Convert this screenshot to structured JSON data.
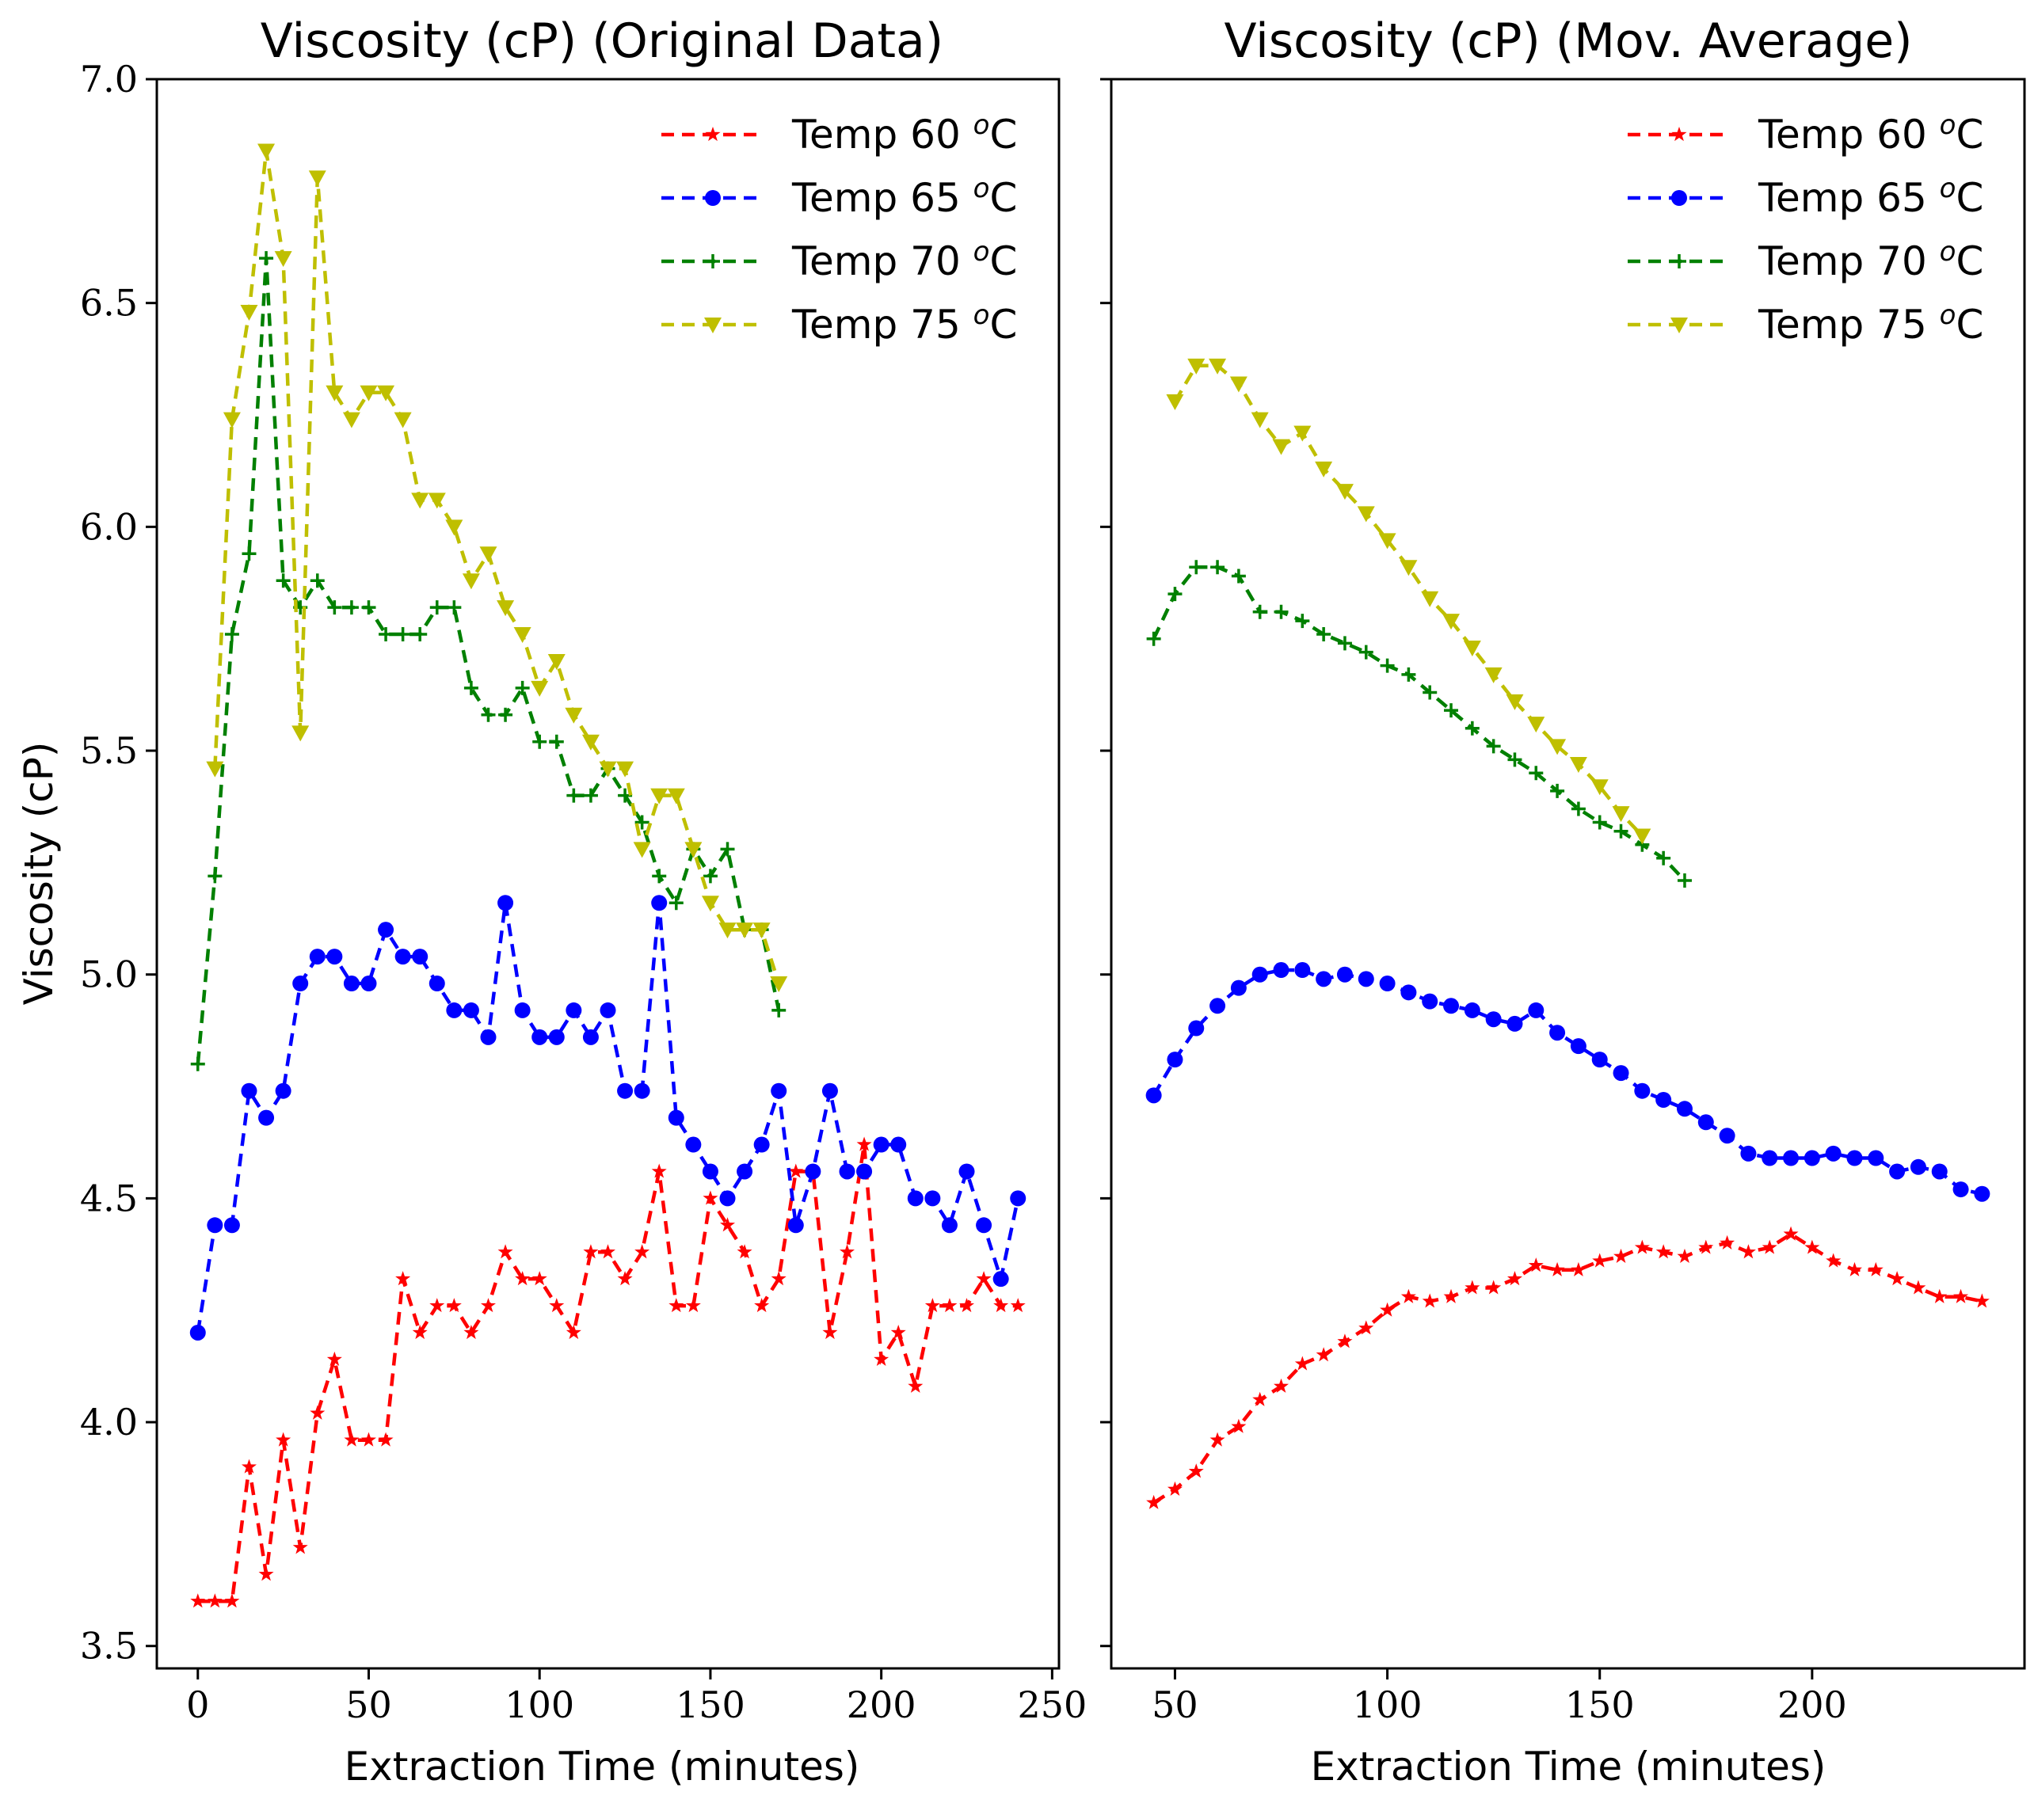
{
  "chart_data": [
    {
      "type": "line",
      "title": "Viscosity (cP) (Original Data)",
      "xlabel": "Extraction Time (minutes)",
      "ylabel": "Viscosity (cP)",
      "xlim": [
        -12,
        252
      ],
      "ylim": [
        3.45,
        7.0
      ],
      "xticks": [
        0,
        50,
        100,
        150,
        200,
        250
      ],
      "xtick_labels": [
        "0",
        "50",
        "100",
        "150",
        "200",
        "250"
      ],
      "yticks": [
        3.5,
        4.0,
        4.5,
        5.0,
        5.5,
        6.0,
        6.5,
        7.0
      ],
      "ytick_labels": [
        "3.5",
        "4.0",
        "4.5",
        "5.0",
        "5.5",
        "6.0",
        "6.5",
        "7.0"
      ],
      "legend_position": "top-right",
      "series": [
        {
          "name": "Temp 60",
          "label": "Temp 60",
          "unit_sup": "o",
          "unit": "C",
          "color": "#ff0000",
          "marker": "star",
          "x": [
            0,
            5,
            10,
            15,
            20,
            25,
            30,
            35,
            40,
            45,
            50,
            55,
            60,
            65,
            70,
            75,
            80,
            85,
            90,
            95,
            100,
            105,
            110,
            115,
            120,
            125,
            130,
            135,
            140,
            145,
            150,
            155,
            160,
            165,
            170,
            175,
            180,
            185,
            190,
            195,
            200,
            205,
            210,
            215,
            220,
            225,
            230,
            235,
            240
          ],
          "y": [
            3.6,
            3.6,
            3.6,
            3.9,
            3.66,
            3.96,
            3.72,
            4.02,
            4.14,
            3.96,
            3.96,
            3.96,
            4.32,
            4.2,
            4.26,
            4.26,
            4.2,
            4.26,
            4.38,
            4.32,
            4.32,
            4.26,
            4.2,
            4.38,
            4.38,
            4.32,
            4.38,
            4.56,
            4.26,
            4.26,
            4.5,
            4.44,
            4.38,
            4.26,
            4.32,
            4.56,
            4.56,
            4.2,
            4.38,
            4.62,
            4.14,
            4.2,
            4.08,
            4.26,
            4.26,
            4.26,
            4.32,
            4.26,
            4.26
          ]
        },
        {
          "name": "Temp 65",
          "label": "Temp 65",
          "unit_sup": "o",
          "unit": "C",
          "color": "#0000ff",
          "marker": "circle",
          "x": [
            0,
            5,
            10,
            15,
            20,
            25,
            30,
            35,
            40,
            45,
            50,
            55,
            60,
            65,
            70,
            75,
            80,
            85,
            90,
            95,
            100,
            105,
            110,
            115,
            120,
            125,
            130,
            135,
            140,
            145,
            150,
            155,
            160,
            165,
            170,
            175,
            180,
            185,
            190,
            195,
            200,
            205,
            210,
            215,
            220,
            225,
            230,
            235,
            240
          ],
          "y": [
            4.2,
            4.44,
            4.44,
            4.74,
            4.68,
            4.74,
            4.98,
            5.04,
            5.04,
            4.98,
            4.98,
            5.1,
            5.04,
            5.04,
            4.98,
            4.92,
            4.92,
            4.86,
            5.16,
            4.92,
            4.86,
            4.86,
            4.92,
            4.86,
            4.92,
            4.74,
            4.74,
            5.16,
            4.68,
            4.62,
            4.56,
            4.5,
            4.56,
            4.62,
            4.74,
            4.44,
            4.56,
            4.74,
            4.56,
            4.56,
            4.62,
            4.62,
            4.5,
            4.5,
            4.44,
            4.56,
            4.44,
            4.32,
            4.5
          ]
        },
        {
          "name": "Temp 70",
          "label": "Temp 70",
          "unit_sup": "o",
          "unit": "C",
          "color": "#008000",
          "marker": "plus",
          "x": [
            0,
            5,
            10,
            15,
            20,
            25,
            30,
            35,
            40,
            45,
            50,
            55,
            60,
            65,
            70,
            75,
            80,
            85,
            90,
            95,
            100,
            105,
            110,
            115,
            120,
            125,
            130,
            135,
            140,
            145,
            150,
            155,
            160,
            165,
            170
          ],
          "y": [
            4.8,
            5.22,
            5.76,
            5.94,
            6.6,
            5.88,
            5.82,
            5.88,
            5.82,
            5.82,
            5.82,
            5.76,
            5.76,
            5.76,
            5.82,
            5.82,
            5.64,
            5.58,
            5.58,
            5.64,
            5.52,
            5.52,
            5.4,
            5.4,
            5.46,
            5.4,
            5.34,
            5.22,
            5.16,
            5.28,
            5.22,
            5.28,
            5.1,
            5.1,
            4.92
          ]
        },
        {
          "name": "Temp 75",
          "label": "Temp 75",
          "unit_sup": "o",
          "unit": "C",
          "color": "#bfbf00",
          "marker": "triangle-down",
          "x": [
            5,
            10,
            15,
            20,
            25,
            30,
            35,
            40,
            45,
            50,
            55,
            60,
            65,
            70,
            75,
            80,
            85,
            90,
            95,
            100,
            105,
            110,
            115,
            120,
            125,
            130,
            135,
            140,
            145,
            150,
            155,
            160,
            165,
            170
          ],
          "y": [
            5.46,
            6.24,
            6.48,
            6.84,
            6.6,
            5.54,
            6.78,
            6.3,
            6.24,
            6.3,
            6.3,
            6.24,
            6.06,
            6.06,
            6.0,
            5.88,
            5.94,
            5.82,
            5.76,
            5.64,
            5.7,
            5.58,
            5.52,
            5.46,
            5.46,
            5.28,
            5.4,
            5.4,
            5.28,
            5.16,
            5.1,
            5.1,
            5.1,
            4.98
          ]
        }
      ]
    },
    {
      "type": "line",
      "title": "Viscosity (cP) (Mov. Average)",
      "xlabel": "Extraction Time (minutes)",
      "ylabel": "",
      "xlim": [
        35,
        250
      ],
      "ylim": [
        3.45,
        7.0
      ],
      "xticks": [
        50,
        100,
        150,
        200
      ],
      "xtick_labels": [
        "50",
        "100",
        "150",
        "200"
      ],
      "yticks": [
        3.5,
        4.0,
        4.5,
        5.0,
        5.5,
        6.0,
        6.5,
        7.0
      ],
      "ytick_labels": [],
      "legend_position": "top-right",
      "series": [
        {
          "name": "Temp 60",
          "label": "Temp 60",
          "unit_sup": "o",
          "unit": "C",
          "color": "#ff0000",
          "marker": "star",
          "x": [
            45,
            50,
            55,
            60,
            65,
            70,
            75,
            80,
            85,
            90,
            95,
            100,
            105,
            110,
            115,
            120,
            125,
            130,
            135,
            140,
            145,
            150,
            155,
            160,
            165,
            170,
            175,
            180,
            185,
            190,
            195,
            200,
            205,
            210,
            215,
            220,
            225,
            230,
            235,
            240
          ],
          "y": [
            3.82,
            3.85,
            3.89,
            3.96,
            3.99,
            4.05,
            4.08,
            4.13,
            4.15,
            4.18,
            4.21,
            4.25,
            4.28,
            4.27,
            4.28,
            4.3,
            4.3,
            4.32,
            4.35,
            4.34,
            4.34,
            4.36,
            4.37,
            4.39,
            4.38,
            4.37,
            4.39,
            4.4,
            4.38,
            4.39,
            4.42,
            4.39,
            4.36,
            4.34,
            4.34,
            4.32,
            4.3,
            4.28,
            4.28,
            4.27
          ]
        },
        {
          "name": "Temp 65",
          "label": "Temp 65",
          "unit_sup": "o",
          "unit": "C",
          "color": "#0000ff",
          "marker": "circle",
          "x": [
            45,
            50,
            55,
            60,
            65,
            70,
            75,
            80,
            85,
            90,
            95,
            100,
            105,
            110,
            115,
            120,
            125,
            130,
            135,
            140,
            145,
            150,
            155,
            160,
            165,
            170,
            175,
            180,
            185,
            190,
            195,
            200,
            205,
            210,
            215,
            220,
            225,
            230,
            235,
            240
          ],
          "y": [
            4.73,
            4.81,
            4.88,
            4.93,
            4.97,
            5.0,
            5.01,
            5.01,
            4.99,
            5.0,
            4.99,
            4.98,
            4.96,
            4.94,
            4.93,
            4.92,
            4.9,
            4.89,
            4.92,
            4.87,
            4.84,
            4.81,
            4.78,
            4.74,
            4.72,
            4.7,
            4.67,
            4.64,
            4.6,
            4.59,
            4.59,
            4.59,
            4.6,
            4.59,
            4.59,
            4.56,
            4.57,
            4.56,
            4.52,
            4.51
          ]
        },
        {
          "name": "Temp 70",
          "label": "Temp 70",
          "unit_sup": "o",
          "unit": "C",
          "color": "#008000",
          "marker": "plus",
          "x": [
            45,
            50,
            55,
            60,
            65,
            70,
            75,
            80,
            85,
            90,
            95,
            100,
            105,
            110,
            115,
            120,
            125,
            130,
            135,
            140,
            145,
            150,
            155,
            160,
            165,
            170
          ],
          "y": [
            5.75,
            5.85,
            5.91,
            5.91,
            5.89,
            5.81,
            5.81,
            5.79,
            5.76,
            5.74,
            5.72,
            5.69,
            5.67,
            5.63,
            5.59,
            5.55,
            5.51,
            5.48,
            5.45,
            5.41,
            5.37,
            5.34,
            5.32,
            5.29,
            5.26,
            5.21
          ]
        },
        {
          "name": "Temp 75",
          "label": "Temp 75",
          "unit_sup": "o",
          "unit": "C",
          "color": "#bfbf00",
          "marker": "triangle-down",
          "x": [
            50,
            55,
            60,
            65,
            70,
            75,
            80,
            85,
            90,
            95,
            100,
            105,
            110,
            115,
            120,
            125,
            130,
            135,
            140,
            145,
            150,
            155,
            160
          ],
          "y": [
            6.28,
            6.36,
            6.36,
            6.32,
            6.24,
            6.18,
            6.21,
            6.13,
            6.08,
            6.03,
            5.97,
            5.91,
            5.84,
            5.79,
            5.73,
            5.67,
            5.61,
            5.56,
            5.51,
            5.47,
            5.42,
            5.36,
            5.31
          ]
        }
      ]
    }
  ]
}
